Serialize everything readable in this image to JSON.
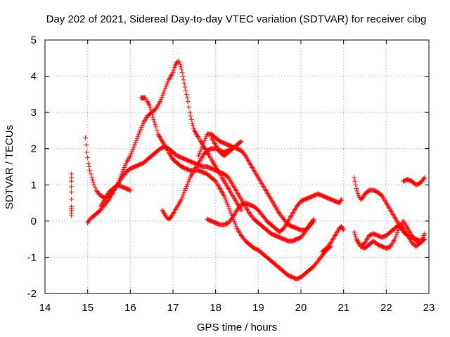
{
  "chart_data": {
    "type": "scatter",
    "title": "Day 202 of 2021, Sidereal Day-to-day VTEC variation (SDTVAR) for receiver cibg",
    "xlabel": "GPS time / hours",
    "ylabel": "SDTVAR / TECUs",
    "xlim": [
      14,
      23
    ],
    "ylim": [
      -2,
      5
    ],
    "grid": true,
    "marker": "+",
    "color": "#ff0000",
    "x_ticks": [
      14,
      15,
      16,
      17,
      18,
      19,
      20,
      21,
      22,
      23
    ],
    "y_ticks": [
      -2,
      -1,
      0,
      1,
      2,
      3,
      4,
      5
    ],
    "series": [
      {
        "name": "s1",
        "x": [
          14.62,
          14.62,
          14.62,
          14.62,
          14.62,
          14.62
        ],
        "y": [
          1.3,
          1.1,
          0.8,
          0.4,
          0.3,
          0.15
        ]
      },
      {
        "name": "s2",
        "x": [
          14.95,
          14.98,
          15.02,
          15.05,
          15.1,
          15.15,
          15.2,
          15.3,
          15.4,
          15.5,
          15.6,
          15.7,
          15.8,
          15.9,
          16.0,
          16.1,
          16.2,
          16.3,
          16.4,
          16.5,
          16.6,
          16.7,
          16.8,
          16.9,
          17.0,
          17.1,
          17.2,
          17.3,
          17.4,
          17.5,
          17.6,
          17.7,
          17.8,
          17.9,
          18.0,
          18.1,
          18.2,
          18.3,
          18.4,
          18.5,
          18.6,
          18.7,
          18.8,
          18.9,
          19.0,
          19.1,
          19.2,
          19.3,
          19.4,
          19.5,
          19.6,
          19.7,
          19.8,
          19.9,
          20.0,
          20.1,
          20.2,
          20.3
        ],
        "y": [
          2.3,
          1.9,
          1.6,
          1.4,
          1.2,
          1.0,
          0.85,
          0.7,
          0.65,
          0.7,
          0.85,
          1.0,
          1.2,
          1.35,
          1.45,
          1.5,
          1.55,
          1.6,
          1.7,
          1.8,
          1.9,
          2.0,
          2.05,
          2.0,
          1.9,
          1.8,
          1.75,
          1.7,
          1.65,
          1.6,
          1.55,
          1.5,
          1.5,
          1.45,
          1.4,
          1.35,
          1.3,
          1.2,
          1.0,
          0.8,
          0.6,
          0.4,
          0.2,
          0.05,
          -0.05,
          -0.15,
          -0.25,
          -0.35,
          -0.4,
          -0.45,
          -0.5,
          -0.55,
          -0.55,
          -0.5,
          -0.45,
          -0.3,
          -0.1,
          0.05
        ]
      },
      {
        "name": "s3",
        "x": [
          15.0,
          15.05,
          15.1,
          15.2,
          15.3,
          15.4,
          15.5,
          15.6,
          15.7,
          15.8,
          15.9,
          16.0,
          16.1,
          16.2,
          16.3,
          16.4,
          16.5,
          16.6,
          16.7,
          16.8,
          16.9,
          17.0,
          17.05,
          17.1,
          17.15,
          17.2,
          17.25,
          17.3,
          17.35,
          17.4,
          17.45,
          17.5,
          17.55,
          17.6,
          17.65,
          17.7,
          17.75,
          17.8,
          17.85,
          17.9,
          17.95,
          18.0,
          18.05,
          18.1,
          18.15,
          18.2,
          18.25,
          18.3,
          18.4,
          18.5,
          18.6
        ],
        "y": [
          -0.05,
          0.05,
          0.1,
          0.2,
          0.3,
          0.45,
          0.6,
          0.8,
          1.0,
          1.3,
          1.6,
          1.8,
          2.1,
          2.4,
          2.7,
          2.9,
          3.0,
          3.1,
          3.3,
          3.6,
          3.9,
          4.1,
          4.3,
          4.4,
          4.4,
          4.2,
          3.9,
          3.6,
          3.3,
          3.0,
          2.7,
          2.5,
          2.4,
          2.3,
          2.2,
          2.1,
          2.0,
          1.9,
          1.8,
          1.7,
          1.6,
          1.5,
          1.4,
          1.3,
          1.2,
          1.1,
          1.0,
          0.9,
          0.7,
          0.5,
          0.3
        ]
      },
      {
        "name": "s4",
        "x": [
          15.3,
          15.4,
          15.5,
          15.6,
          15.7,
          15.8,
          15.9,
          16.0
        ],
        "y": [
          0.4,
          0.6,
          0.8,
          0.9,
          1.0,
          0.95,
          0.9,
          0.85
        ]
      },
      {
        "name": "s5",
        "x": [
          16.25,
          16.3,
          16.35,
          16.4,
          16.45,
          16.5,
          16.55,
          16.6,
          16.65,
          16.7,
          16.75,
          16.8,
          16.85,
          16.9,
          16.95,
          17.0,
          17.1,
          17.2,
          17.3,
          17.4,
          17.5,
          17.6,
          17.7,
          17.8,
          17.9,
          18.0,
          18.1,
          18.2,
          18.3,
          18.4,
          18.5,
          18.6,
          18.7,
          18.8,
          18.9,
          19.0,
          19.1,
          19.2,
          19.3,
          19.4,
          19.5,
          19.6,
          19.7,
          19.8,
          19.9,
          20.0,
          20.1,
          20.2,
          20.3,
          20.4,
          20.5,
          20.6,
          20.7
        ],
        "y": [
          3.4,
          3.4,
          3.4,
          3.3,
          3.2,
          3.0,
          2.8,
          2.6,
          2.4,
          2.3,
          2.2,
          2.1,
          2.0,
          1.9,
          1.8,
          1.7,
          1.6,
          1.5,
          1.45,
          1.4,
          1.4,
          1.4,
          1.35,
          1.3,
          1.2,
          1.1,
          0.9,
          0.7,
          0.4,
          0.1,
          -0.2,
          -0.4,
          -0.55,
          -0.65,
          -0.75,
          -0.8,
          -0.9,
          -1.0,
          -1.1,
          -1.2,
          -1.3,
          -1.4,
          -1.5,
          -1.55,
          -1.6,
          -1.55,
          -1.45,
          -1.35,
          -1.25,
          -1.1,
          -0.95,
          -0.8,
          -0.7
        ]
      },
      {
        "name": "s6",
        "x": [
          16.75,
          16.8,
          16.85,
          16.9,
          16.95,
          17.0,
          17.1,
          17.2,
          17.3,
          17.4,
          17.5,
          17.6,
          17.7,
          17.8,
          17.9,
          18.0,
          18.1,
          18.2,
          18.3,
          18.4,
          18.5,
          18.6
        ],
        "y": [
          0.3,
          0.2,
          0.1,
          0.05,
          0.1,
          0.2,
          0.4,
          0.6,
          0.9,
          1.2,
          1.4,
          1.6,
          1.8,
          1.95,
          2.0,
          2.0,
          1.95,
          1.9,
          1.95,
          2.0,
          2.1,
          2.2
        ]
      },
      {
        "name": "s7",
        "x": [
          17.6,
          17.7,
          17.8,
          17.9,
          18.0,
          18.05,
          18.1,
          18.2,
          18.3,
          18.4,
          18.5,
          18.6,
          18.7,
          18.8,
          18.9,
          19.0,
          19.1,
          19.2,
          19.3,
          19.4,
          19.5,
          19.6,
          19.7,
          19.8,
          19.9,
          20.0,
          20.1,
          20.2,
          20.3
        ],
        "y": [
          1.8,
          2.1,
          2.4,
          2.4,
          2.3,
          2.25,
          2.2,
          2.15,
          2.1,
          2.05,
          2.0,
          1.95,
          1.8,
          1.6,
          1.4,
          1.2,
          1.0,
          0.8,
          0.6,
          0.4,
          0.2,
          0.05,
          -0.1,
          -0.15,
          -0.2,
          -0.25,
          -0.25,
          -0.15,
          0.0
        ]
      },
      {
        "name": "s8",
        "x": [
          17.8,
          17.9,
          18.0,
          18.1,
          18.2,
          18.3,
          18.4,
          18.5,
          18.6,
          18.7,
          18.8,
          18.9,
          19.0,
          19.1,
          19.2,
          19.3,
          19.4,
          19.5,
          19.6,
          19.7,
          19.8,
          19.9,
          20.0,
          20.1,
          20.2,
          20.3,
          20.4,
          20.5,
          20.6,
          20.7,
          20.8,
          20.9,
          20.95
        ],
        "y": [
          0.05,
          0.0,
          -0.05,
          -0.1,
          -0.1,
          -0.05,
          0.1,
          0.3,
          0.45,
          0.5,
          0.45,
          0.4,
          0.3,
          0.15,
          0.0,
          -0.1,
          -0.2,
          -0.3,
          -0.2,
          0.0,
          0.2,
          0.4,
          0.55,
          0.6,
          0.65,
          0.7,
          0.75,
          0.7,
          0.65,
          0.6,
          0.55,
          0.5,
          0.6
        ]
      },
      {
        "name": "s9",
        "x": [
          20.5,
          20.6,
          20.7,
          20.8,
          20.9,
          20.95,
          21.0
        ],
        "y": [
          -0.85,
          -0.75,
          -0.6,
          -0.4,
          -0.2,
          -0.15,
          -0.25
        ]
      },
      {
        "name": "s10",
        "x": [
          21.25,
          21.3,
          21.35,
          21.4,
          21.45,
          21.5,
          21.6,
          21.7,
          21.8,
          21.9,
          22.0,
          22.1,
          22.2,
          22.3,
          22.4,
          22.5,
          22.6,
          22.7,
          22.8,
          22.9
        ],
        "y": [
          1.2,
          0.9,
          0.7,
          0.6,
          0.65,
          0.75,
          0.85,
          0.85,
          0.8,
          0.7,
          0.5,
          0.3,
          0.1,
          -0.1,
          -0.3,
          -0.4,
          -0.45,
          -0.5,
          -0.55,
          -0.5
        ]
      },
      {
        "name": "s11",
        "x": [
          21.25,
          21.3,
          21.4,
          21.5,
          21.6,
          21.7,
          21.8,
          21.9,
          22.0,
          22.1,
          22.2,
          22.3,
          22.4,
          22.5,
          22.6,
          22.7,
          22.8,
          22.9
        ],
        "y": [
          -0.3,
          -0.5,
          -0.7,
          -0.6,
          -0.4,
          -0.35,
          -0.4,
          -0.45,
          -0.4,
          -0.3,
          -0.2,
          -0.1,
          -0.2,
          -0.4,
          -0.6,
          -0.7,
          -0.6,
          -0.5
        ]
      },
      {
        "name": "s12",
        "x": [
          21.3,
          21.4,
          21.5,
          21.6,
          21.7,
          21.8,
          21.9,
          22.0,
          22.1,
          22.2,
          22.3,
          22.4,
          22.5,
          22.6,
          22.7,
          22.8,
          22.9
        ],
        "y": [
          -0.5,
          -0.7,
          -0.75,
          -0.65,
          -0.55,
          -0.65,
          -0.7,
          -0.75,
          -0.7,
          -0.5,
          -0.2,
          0.0,
          -0.2,
          -0.4,
          -0.55,
          -0.6,
          -0.35
        ]
      },
      {
        "name": "s13",
        "x": [
          22.4,
          22.5,
          22.6,
          22.7,
          22.8,
          22.9
        ],
        "y": [
          1.1,
          1.15,
          1.1,
          1.0,
          1.05,
          1.2
        ]
      },
      {
        "name": "s14",
        "x": [
          17.9,
          18.0,
          18.1,
          18.2,
          18.3,
          18.4
        ],
        "y": [
          2.3,
          2.1,
          1.9,
          1.8,
          1.9,
          2.0
        ]
      }
    ]
  }
}
